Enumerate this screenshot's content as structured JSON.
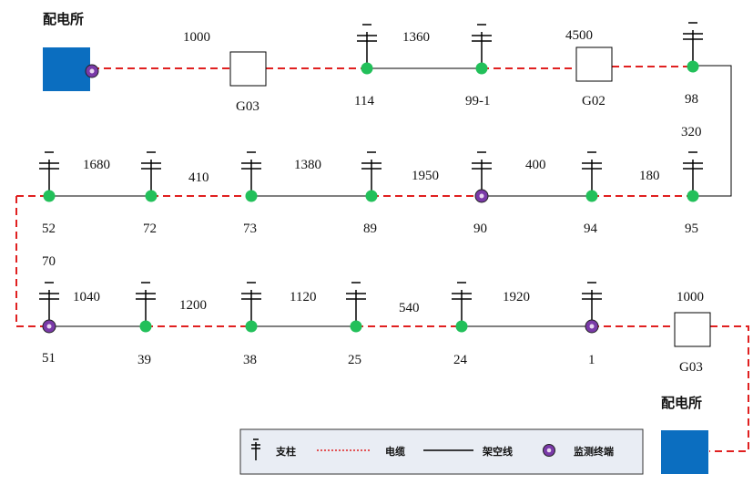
{
  "substation_label": "配电所",
  "colors": {
    "cable": "#e02020",
    "overhead": "#000000",
    "pole_node": "#22c05a",
    "monitor_fill": "#7a3aa8",
    "substation": "#0b6ec0"
  },
  "row1": {
    "lengths": [
      "1000",
      "1360",
      "4500"
    ],
    "nodes": [
      "114",
      "99-1",
      "98"
    ],
    "switches": [
      "G03",
      "G02"
    ]
  },
  "right_link_length": "320",
  "row2": {
    "lengths": [
      "1680",
      "410",
      "1380",
      "1950",
      "400",
      "180"
    ],
    "nodes": [
      "52",
      "72",
      "73",
      "89",
      "90",
      "94",
      "95"
    ]
  },
  "left_link_length": "70",
  "row3": {
    "lengths": [
      "1040",
      "1200",
      "1120",
      "540",
      "1920",
      "1000"
    ],
    "nodes": [
      "51",
      "39",
      "38",
      "25",
      "24",
      "1"
    ],
    "switch": "G03"
  },
  "legend": {
    "pole": "支柱",
    "cable": "电缆",
    "overhead": "架空线",
    "monitor": "监测终端"
  }
}
